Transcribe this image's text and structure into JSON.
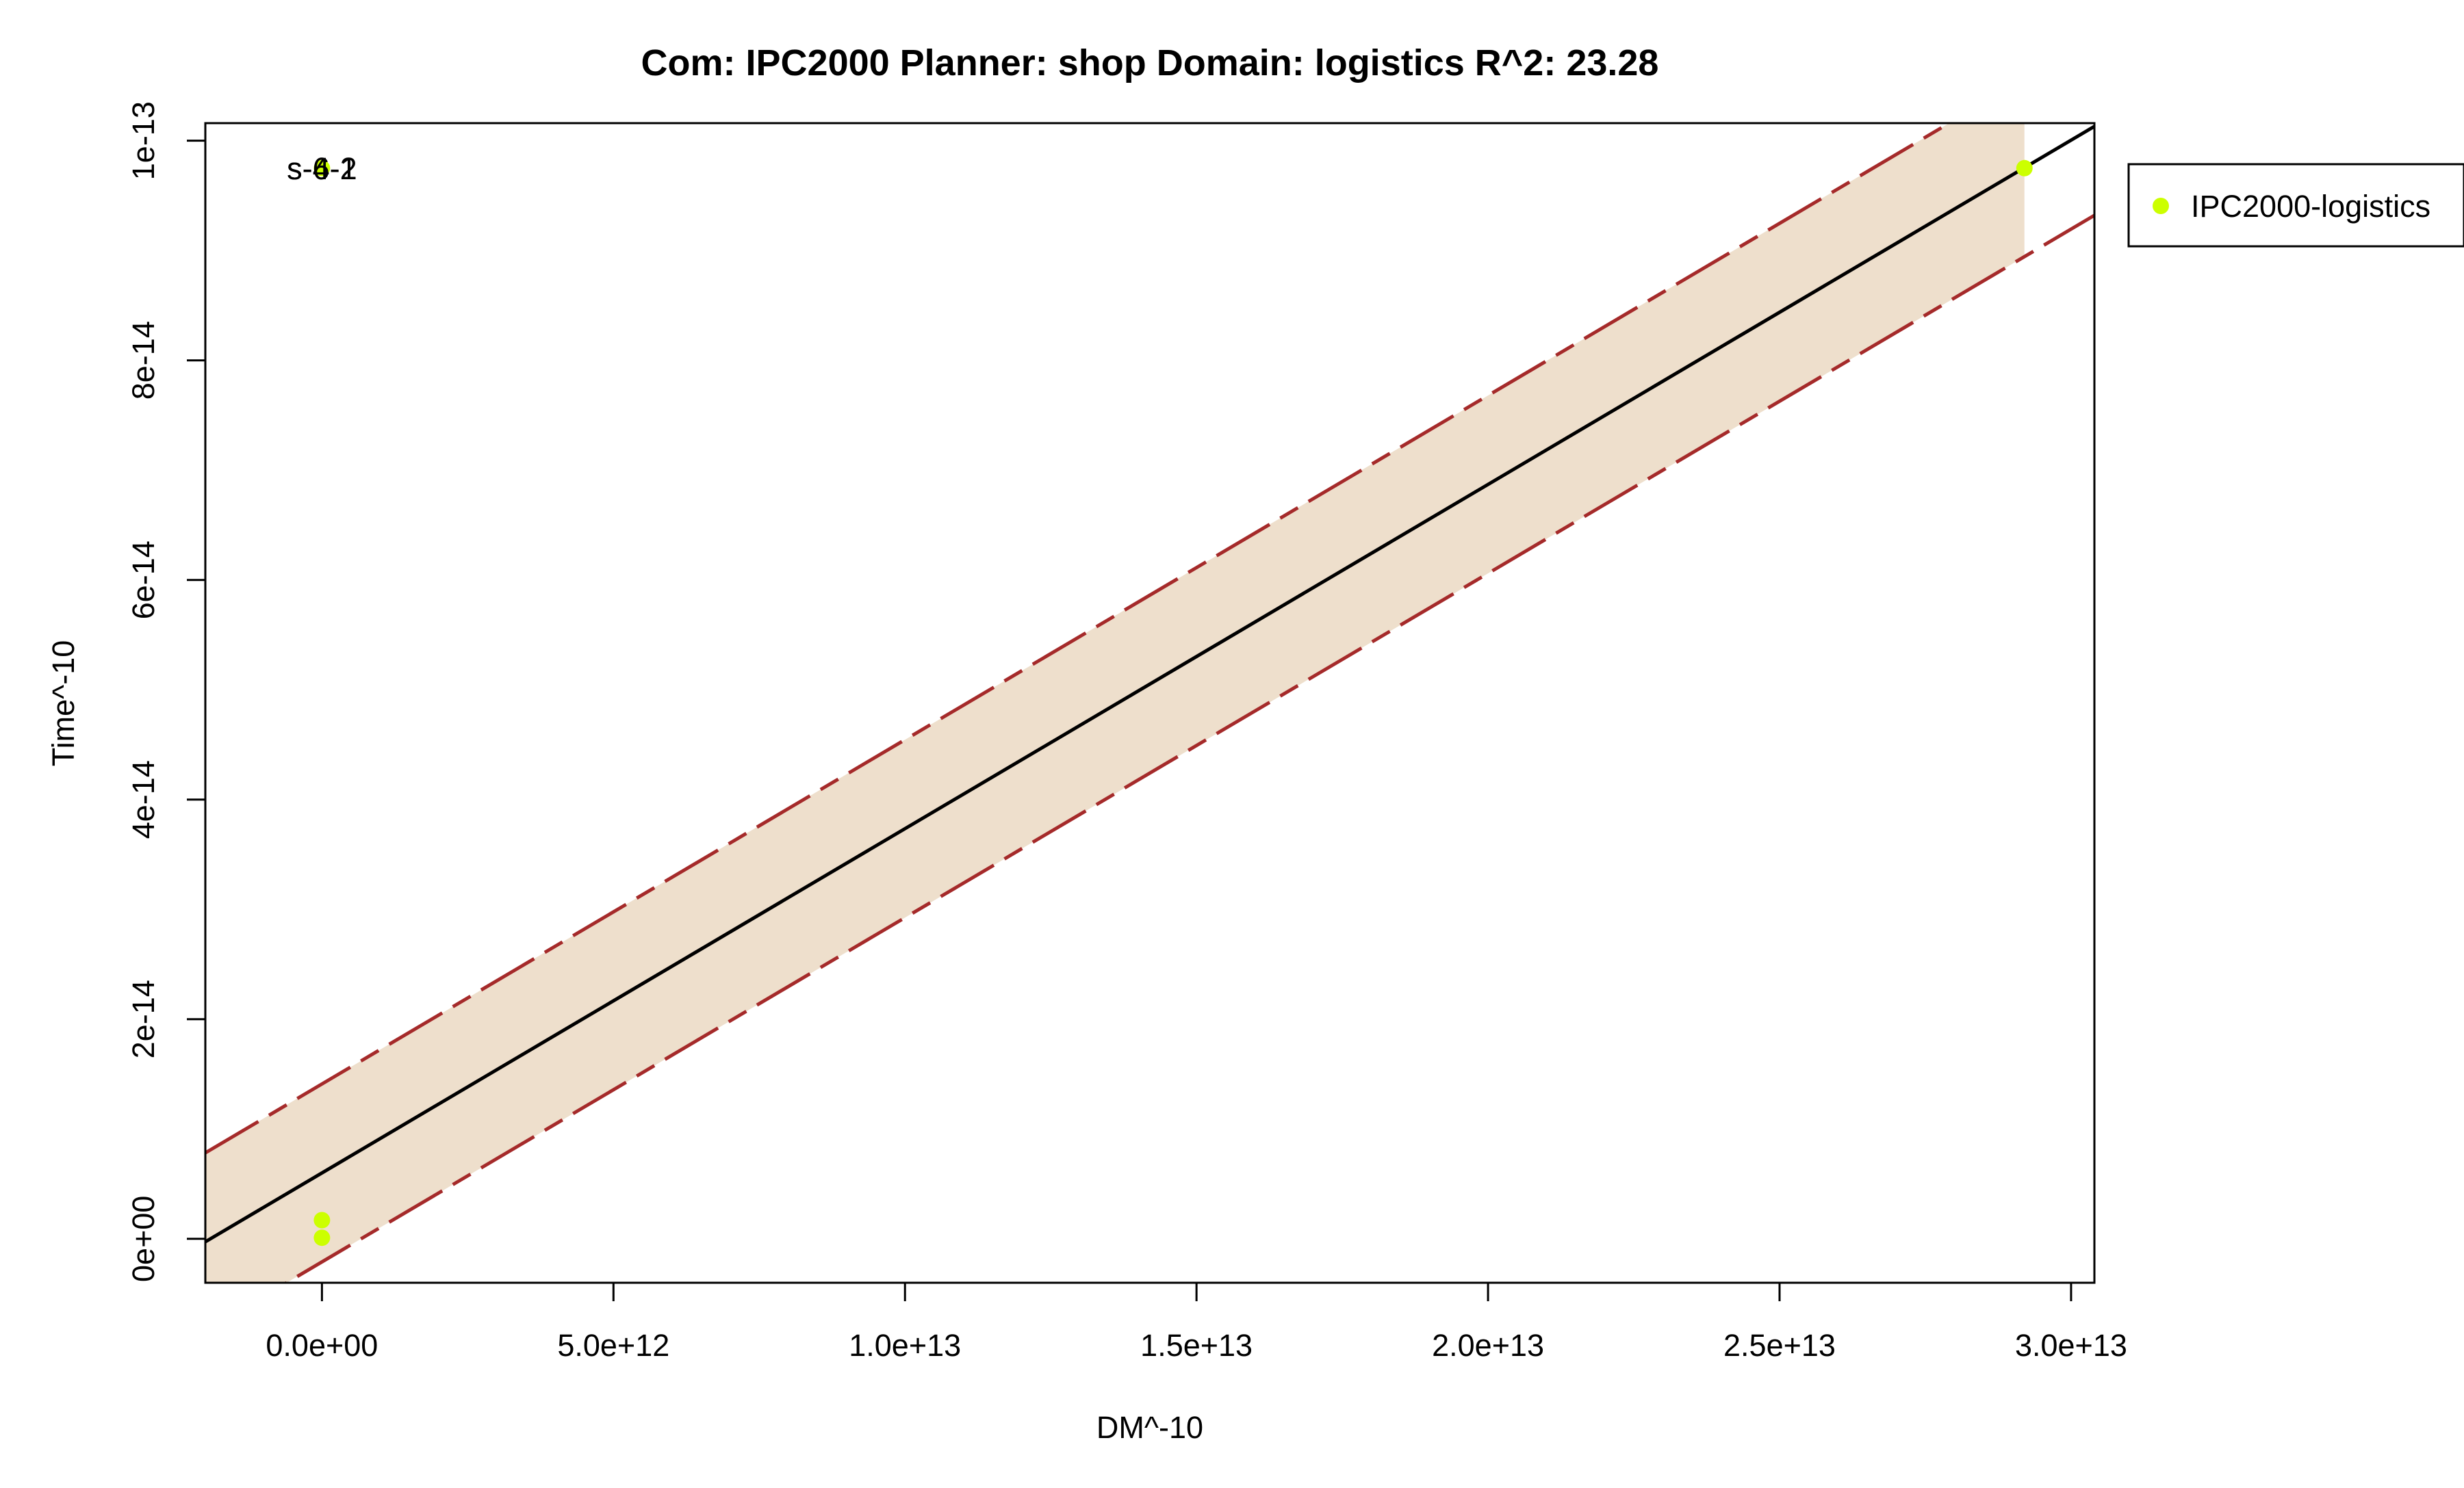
{
  "chart_data": {
    "type": "scatter",
    "title": "Com: IPC2000 Planner: shop Domain: logistics R^2: 23.28",
    "xlabel": "DM^-10",
    "ylabel": "Time^-10",
    "xlim": [
      -2000000000000.0,
      30400000000000.0
    ],
    "ylim": [
      -4000000000000000.0,
      10160000000000.0
    ],
    "ylim_data": [
      -4e-15,
      1.016e-13
    ],
    "x_ticks": [
      0,
      5000000000000.0,
      10000000000000.0,
      15000000000000.0,
      20000000000000.0,
      25000000000000.0,
      30000000000000.0
    ],
    "x_tick_labels": [
      "0.0e+00",
      "5.0e+12",
      "1.0e+13",
      "1.5e+13",
      "2.0e+13",
      "2.5e+13",
      "3.0e+13"
    ],
    "y_ticks": [
      0,
      2e-14,
      4e-14,
      6e-14,
      8e-14,
      1e-13
    ],
    "y_tick_labels": [
      "0e+00",
      "2e-14",
      "4e-14",
      "6e-14",
      "8e-14",
      "1e-13"
    ],
    "grid": false,
    "legend_position": "outside-right-top",
    "series": [
      {
        "name": "IPC2000-logistics",
        "color": "#ccff00",
        "points": [
          {
            "x": 0,
            "y": 1.7e-15
          },
          {
            "x": 0,
            "y": 1e-16
          },
          {
            "x": 0,
            "y": 9.75e-14
          },
          {
            "x": 29200000000000.0,
            "y": 9.75e-14
          }
        ]
      }
    ],
    "point_labels": [
      {
        "text": "s-6-2",
        "x": 0,
        "y": 9.75e-14
      },
      {
        "text": "s-4-1",
        "x": 0,
        "y": 9.75e-14
      }
    ],
    "fit_line": {
      "intercept": 6e-15,
      "slope": 3.135e-27,
      "color": "#000000"
    },
    "prediction_band": {
      "offset": 8.1e-15,
      "x_end": 29200000000000.0,
      "fill": "#eedfcc",
      "line_color": "#a52a2a"
    }
  }
}
